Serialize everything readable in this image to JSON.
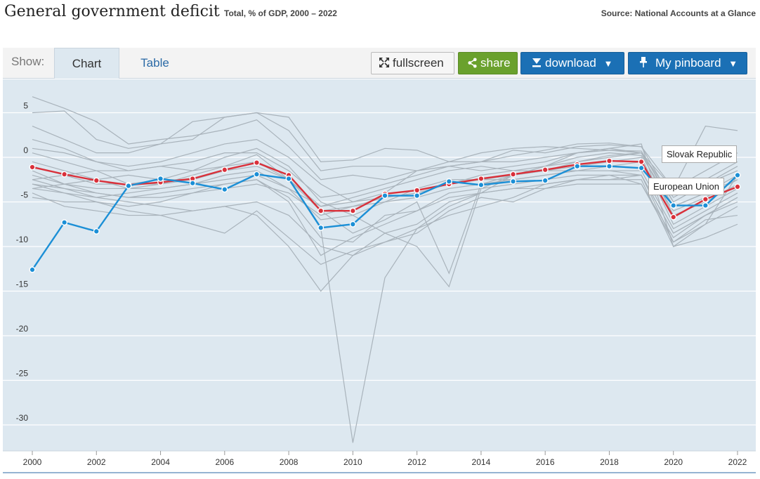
{
  "header": {
    "title": "General government deficit",
    "subtitle": "Total, % of GDP, 2000 – 2022",
    "source": "Source: National Accounts at a Glance"
  },
  "toolbar": {
    "show_label": "Show:",
    "tabs": [
      {
        "label": "Chart",
        "active": true
      },
      {
        "label": "Table",
        "active": false
      }
    ],
    "fullscreen_label": "fullscreen",
    "share_label": "share",
    "download_label": "download",
    "pinboard_label": "My pinboard",
    "caret": "▼",
    "icons": [
      "expand-icon",
      "share-icon",
      "download-icon",
      "pin-icon",
      "caret-down-icon"
    ],
    "colors": {
      "share": "#6aa12d",
      "download": "#1b70b5",
      "pinboard": "#1b70b5"
    }
  },
  "chart_data": {
    "type": "line",
    "x": [
      2000,
      2001,
      2002,
      2003,
      2004,
      2005,
      2006,
      2007,
      2008,
      2009,
      2010,
      2011,
      2012,
      2013,
      2014,
      2015,
      2016,
      2017,
      2018,
      2019,
      2020,
      2021,
      2022
    ],
    "xticks": [
      2000,
      2002,
      2004,
      2006,
      2008,
      2010,
      2012,
      2014,
      2016,
      2018,
      2020,
      2022
    ],
    "yticks": [
      5,
      0,
      -5,
      -10,
      -15,
      -20,
      -25,
      -30
    ],
    "ylim": [
      -33,
      7
    ],
    "xlim": [
      2000,
      2022
    ],
    "grid": true,
    "highlighted": [
      {
        "name": "Slovak Republic",
        "color": "#1b8fd6",
        "values": [
          -12.6,
          -7.3,
          -8.3,
          -3.2,
          -2.4,
          -2.9,
          -3.6,
          -1.9,
          -2.4,
          -7.9,
          -7.5,
          -4.3,
          -4.3,
          -2.7,
          -3.1,
          -2.7,
          -2.6,
          -1.0,
          -1.0,
          -1.2,
          -5.4,
          -5.4,
          -2.0
        ]
      },
      {
        "name": "European Union",
        "color": "#d9303a",
        "values": [
          -1.1,
          -1.9,
          -2.6,
          -3.1,
          -2.8,
          -2.4,
          -1.4,
          -0.6,
          -2.0,
          -6.0,
          -6.0,
          -4.1,
          -3.7,
          -3.0,
          -2.4,
          -1.9,
          -1.4,
          -0.8,
          -0.4,
          -0.5,
          -6.7,
          -4.7,
          -3.3
        ]
      }
    ],
    "background_color": "#a9b3bb",
    "background_series": [
      [
        6.8,
        5.5,
        4.0,
        1.5,
        2.0,
        2.4,
        3.1,
        4.2,
        1.2,
        -2.5,
        -2.0,
        -2.5,
        -1.5,
        -0.5,
        0.5,
        1.0,
        1.2,
        1.0,
        0.8,
        0.5,
        -3.5,
        -1.5,
        0.5
      ],
      [
        5.0,
        5.2,
        2.0,
        1.0,
        1.5,
        2.0,
        4.5,
        5.0,
        4.5,
        -0.5,
        -0.3,
        1.0,
        0.8,
        -0.5,
        -0.5,
        0.8,
        0.5,
        1.2,
        1.4,
        1.2,
        -5.0,
        -3.0,
        -1.0
      ],
      [
        3.5,
        2.0,
        0.5,
        0.5,
        1.5,
        4.0,
        4.5,
        5.0,
        3.0,
        -1.5,
        -1.0,
        -1.0,
        -1.5,
        -1.0,
        -0.5,
        0.2,
        0.8,
        1.5,
        1.6,
        1.2,
        -3.5,
        3.5,
        3.0
      ],
      [
        2.0,
        1.0,
        -0.5,
        -1.0,
        -0.5,
        0.5,
        1.5,
        2.0,
        0.0,
        -3.0,
        -5.0,
        -4.0,
        -1.5,
        -1.0,
        -1.5,
        -1.0,
        -0.5,
        0.5,
        1.0,
        0.5,
        -4.5,
        -2.5,
        -0.5
      ],
      [
        0.5,
        -0.5,
        -1.5,
        -3.0,
        -3.0,
        -2.0,
        -1.0,
        0.3,
        -2.5,
        -5.5,
        -4.5,
        -3.5,
        -2.5,
        -1.5,
        -1.0,
        -1.5,
        -1.5,
        -1.5,
        -1.0,
        -0.5,
        -6.0,
        -4.5,
        -2.5
      ],
      [
        -0.5,
        -1.5,
        -2.5,
        -3.5,
        -3.5,
        -3.0,
        -2.0,
        -1.5,
        -3.5,
        -7.0,
        -6.5,
        -5.0,
        -4.5,
        -3.5,
        -3.0,
        -2.5,
        -2.0,
        -1.5,
        -1.5,
        -1.5,
        -8.0,
        -6.0,
        -4.0
      ],
      [
        -1.5,
        -3.0,
        -4.0,
        -4.5,
        -4.0,
        -3.5,
        -3.0,
        -2.5,
        -5.0,
        -11.0,
        -9.0,
        -7.5,
        -6.0,
        -4.0,
        -3.5,
        -3.0,
        -2.5,
        -2.0,
        -2.0,
        -2.0,
        -9.5,
        -7.5,
        -5.5
      ],
      [
        -2.5,
        -3.5,
        -4.5,
        -5.0,
        -5.5,
        -6.0,
        -5.5,
        -5.0,
        -6.5,
        -10.0,
        -11.0,
        -9.5,
        -8.0,
        -6.5,
        -5.5,
        -4.5,
        -3.0,
        -2.5,
        -2.5,
        -2.5,
        -10.0,
        -9.0,
        -7.5
      ],
      [
        -3.0,
        -4.0,
        -5.0,
        -6.0,
        -6.5,
        -7.5,
        -8.5,
        -6.0,
        -9.0,
        -12.0,
        -10.5,
        -9.5,
        -8.5,
        -6.0,
        -4.5,
        -5.0,
        -3.5,
        -3.0,
        -3.0,
        -3.0,
        -9.5,
        -7.0,
        -6.5
      ],
      [
        -4.0,
        -5.5,
        -6.0,
        -6.5,
        -6.5,
        -6.0,
        -5.5,
        -6.5,
        -10.0,
        -15.0,
        -11.0,
        -8.5,
        -7.5,
        -5.0,
        -4.0,
        -3.5,
        -3.0,
        -2.5,
        -2.5,
        -2.0,
        -8.5,
        -6.5,
        -5.0
      ],
      [
        -2.0,
        -3.0,
        -3.5,
        -3.5,
        -3.0,
        -2.5,
        -1.5,
        -0.5,
        -2.5,
        -8.0,
        -32.0,
        -13.5,
        -8.0,
        -5.5,
        -4.0,
        -2.0,
        -1.0,
        -0.5,
        0.2,
        0.5,
        -5.0,
        -3.0,
        -1.5
      ],
      [
        -1.0,
        -2.0,
        -3.0,
        -3.0,
        -2.5,
        -1.5,
        0.0,
        1.0,
        -1.0,
        -5.0,
        -6.5,
        -8.5,
        -10.0,
        -14.5,
        -3.5,
        -2.0,
        -1.0,
        0.5,
        1.0,
        1.5,
        -10.0,
        -7.5,
        -2.0
      ],
      [
        1.0,
        0.5,
        -0.5,
        -1.5,
        -1.0,
        -1.5,
        -1.0,
        -0.5,
        -2.0,
        -6.0,
        -8.5,
        -7.0,
        -5.0,
        -13.0,
        -3.0,
        -2.0,
        -1.5,
        -0.5,
        0.0,
        0.5,
        -6.5,
        -5.0,
        -3.0
      ],
      [
        -3.5,
        -4.0,
        -4.5,
        -4.0,
        -3.5,
        -3.0,
        -2.5,
        -2.0,
        -3.5,
        -5.5,
        -5.0,
        -4.5,
        -4.0,
        -3.0,
        -2.5,
        -2.0,
        -1.5,
        -1.0,
        -0.5,
        0.0,
        -7.5,
        -5.5,
        -3.5
      ],
      [
        -2.5,
        -2.0,
        -1.5,
        -1.5,
        -1.0,
        -0.5,
        0.5,
        0.5,
        -1.5,
        -4.5,
        -4.0,
        -3.0,
        -2.0,
        -1.0,
        -0.5,
        -0.5,
        0.0,
        0.5,
        0.8,
        0.7,
        -5.5,
        -4.0,
        -2.5
      ],
      [
        -3.0,
        -3.5,
        -4.0,
        -4.5,
        -4.5,
        -4.0,
        -3.5,
        -3.0,
        -4.0,
        -6.5,
        -5.5,
        -5.0,
        -3.5,
        -2.5,
        -2.5,
        -2.5,
        -2.0,
        -1.5,
        -1.5,
        -2.0,
        -8.5,
        -6.5,
        -4.5
      ],
      [
        -4.5,
        -5.0,
        -5.0,
        -5.5,
        -5.0,
        -4.0,
        -3.0,
        -2.5,
        -4.5,
        -9.0,
        -9.5,
        -6.5,
        -6.0,
        -4.5,
        -4.0,
        -3.5,
        -3.5,
        -2.5,
        -2.0,
        -3.0,
        -9.0,
        -6.5,
        -4.5
      ],
      [
        -3.5,
        -3.0,
        -2.5,
        -2.0,
        -2.5,
        -2.5,
        -1.5,
        -1.0,
        -2.5,
        -6.0,
        -5.5,
        -4.5,
        -4.0,
        -3.0,
        -2.0,
        -1.5,
        -1.0,
        0.0,
        0.5,
        0.2,
        -5.5,
        -4.0,
        -2.0
      ]
    ],
    "annotations": [
      {
        "text": "Slovak Republic"
      },
      {
        "text": "European Union"
      }
    ]
  }
}
